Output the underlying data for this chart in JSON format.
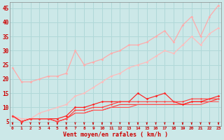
{
  "x": [
    0,
    1,
    2,
    3,
    4,
    5,
    6,
    7,
    8,
    9,
    10,
    11,
    12,
    13,
    14,
    15,
    16,
    17,
    18,
    19,
    20,
    21,
    22,
    23
  ],
  "upper1": [
    24,
    19,
    19,
    20,
    21,
    21,
    22,
    30,
    25,
    26,
    27,
    29,
    30,
    32,
    32,
    33,
    35,
    37,
    33,
    39,
    42,
    35,
    42,
    46
  ],
  "upper2": [
    7,
    6,
    6,
    8,
    9,
    10,
    11,
    14,
    15,
    17,
    19,
    21,
    22,
    24,
    25,
    26,
    28,
    30,
    29,
    32,
    35,
    32,
    36,
    38
  ],
  "lower1": [
    7,
    5,
    6,
    6,
    6,
    6,
    7,
    10,
    10,
    11,
    12,
    12,
    12,
    12,
    15,
    13,
    14,
    15,
    12,
    11,
    12,
    12,
    13,
    14
  ],
  "lower2": [
    7,
    5,
    6,
    6,
    6,
    5,
    6,
    9,
    9,
    10,
    10,
    11,
    12,
    12,
    12,
    12,
    12,
    12,
    12,
    12,
    13,
    13,
    13,
    13
  ],
  "lower3": [
    7,
    5,
    6,
    6,
    6,
    5,
    6,
    8,
    8,
    9,
    9,
    10,
    11,
    11,
    11,
    11,
    11,
    11,
    11,
    11,
    12,
    12,
    12,
    13
  ],
  "lower4": [
    7,
    5,
    6,
    6,
    6,
    5,
    6,
    8,
    8,
    9,
    9,
    10,
    10,
    10,
    11,
    11,
    11,
    11,
    11,
    11,
    11,
    11,
    12,
    12
  ],
  "background": "#cce8e8",
  "grid_color": "#b0d8d8",
  "upper1_color": "#ffaaaa",
  "upper2_color": "#ffbbbb",
  "lower1_color": "#ff2222",
  "lower2_color": "#ff4444",
  "lower3_color": "#ff3333",
  "lower4_color": "#ff5555",
  "xlabel": "Vent moyen/en rafales ( km/h )",
  "ylabel_ticks": [
    5,
    10,
    15,
    20,
    25,
    30,
    35,
    40,
    45
  ],
  "ylim": [
    3.5,
    47
  ],
  "xlim": [
    -0.3,
    23.3
  ],
  "tick_color": "#cc0000",
  "label_color": "#cc0000"
}
